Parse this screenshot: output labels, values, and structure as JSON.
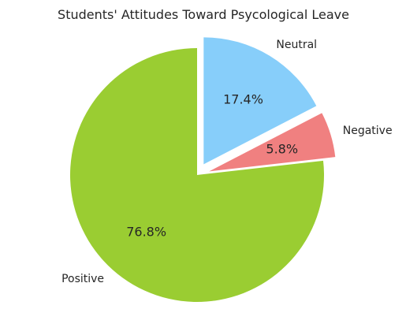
{
  "chart_data": {
    "type": "pie",
    "title": "Students' Attitudes Toward Psycological Leave",
    "categories": [
      "Positive",
      "Negative",
      "Neutral"
    ],
    "values": [
      76.8,
      5.8,
      17.4
    ],
    "value_labels": [
      "76.8%",
      "5.8%",
      "17.4%"
    ],
    "colors": [
      "#9acd32",
      "#f08080",
      "#87cefa"
    ],
    "exploded": [
      false,
      true,
      true
    ],
    "start_angle_deg": 90,
    "direction": "counterclockwise",
    "legend": "none"
  }
}
